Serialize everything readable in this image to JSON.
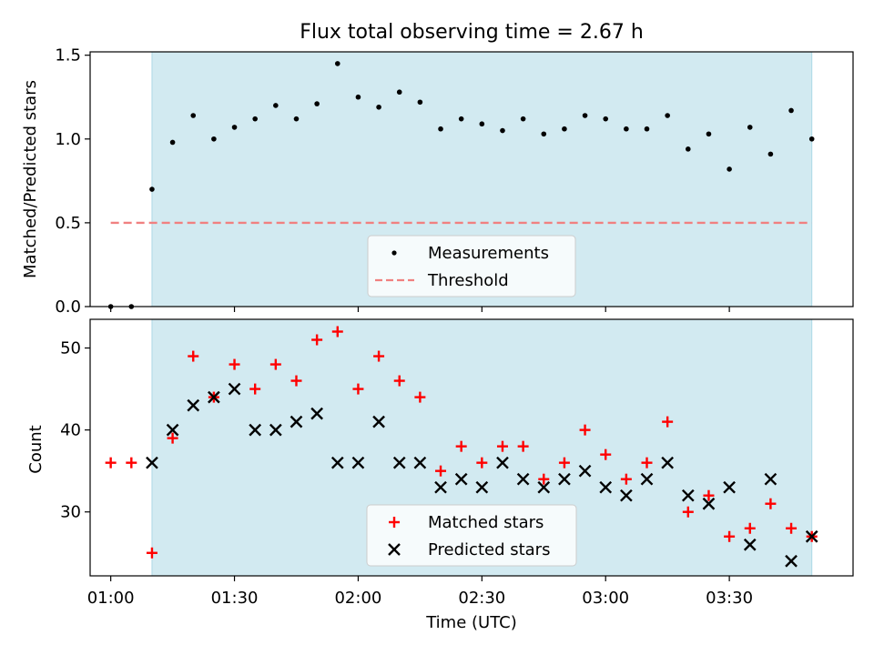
{
  "colors": {
    "background": "#ffffff",
    "shading": "#add8e6",
    "measurement": "#000000",
    "threshold": "#f08080",
    "matched": "#ff0000",
    "predicted": "#000000"
  },
  "chart_data": [
    {
      "type": "scatter",
      "title": "Flux total observing time = 2.67 h",
      "xlabel": "",
      "ylabel": "Matched/Predicted stars",
      "ylim": [
        0,
        1.52
      ],
      "yticks": [
        "0.0",
        "0.5",
        "1.0",
        "1.5"
      ],
      "shaded_region": {
        "x_start": "01:10",
        "x_end": "03:50"
      },
      "legend_position": "lower center",
      "series": [
        {
          "name": "Measurements",
          "marker": "dot",
          "x": [
            "01:00",
            "01:05",
            "01:10",
            "01:15",
            "01:20",
            "01:25",
            "01:30",
            "01:35",
            "01:40",
            "01:45",
            "01:50",
            "01:55",
            "02:00",
            "02:05",
            "02:10",
            "02:15",
            "02:20",
            "02:25",
            "02:30",
            "02:35",
            "02:40",
            "02:45",
            "02:50",
            "02:55",
            "03:00",
            "03:05",
            "03:10",
            "03:15",
            "03:20",
            "03:25",
            "03:30",
            "03:35",
            "03:40",
            "03:45",
            "03:50"
          ],
          "y": [
            0.0,
            0.0,
            0.7,
            0.98,
            1.14,
            1.0,
            1.07,
            1.12,
            1.2,
            1.12,
            1.21,
            1.45,
            1.25,
            1.19,
            1.28,
            1.22,
            1.06,
            1.12,
            1.09,
            1.05,
            1.12,
            1.03,
            1.06,
            1.14,
            1.12,
            1.06,
            1.06,
            1.14,
            0.94,
            1.03,
            0.82,
            1.07,
            0.91,
            1.17,
            1.0
          ]
        },
        {
          "name": "Threshold",
          "marker": "dashed-line",
          "x": [
            "01:00",
            "03:50"
          ],
          "y": [
            0.5,
            0.5
          ]
        }
      ]
    },
    {
      "type": "scatter",
      "title": "",
      "xlabel": "Time (UTC)",
      "ylabel": "Count",
      "ylim": [
        22.2,
        53.5
      ],
      "yticks": [
        "30",
        "40",
        "50"
      ],
      "xticks": [
        "01:00",
        "01:30",
        "02:00",
        "02:30",
        "03:00",
        "03:30"
      ],
      "shaded_region": {
        "x_start": "01:10",
        "x_end": "03:50"
      },
      "legend_position": "lower center",
      "series": [
        {
          "name": "Matched stars",
          "marker": "plus",
          "x": [
            "01:00",
            "01:05",
            "01:10",
            "01:15",
            "01:20",
            "01:25",
            "01:30",
            "01:35",
            "01:40",
            "01:45",
            "01:50",
            "01:55",
            "02:00",
            "02:05",
            "02:10",
            "02:15",
            "02:20",
            "02:25",
            "02:30",
            "02:35",
            "02:40",
            "02:45",
            "02:50",
            "02:55",
            "03:00",
            "03:05",
            "03:10",
            "03:15",
            "03:20",
            "03:25",
            "03:30",
            "03:35",
            "03:40",
            "03:45",
            "03:50"
          ],
          "y": [
            36,
            36,
            25,
            39,
            49,
            44,
            48,
            45,
            48,
            46,
            51,
            52,
            45,
            49,
            46,
            44,
            35,
            38,
            36,
            38,
            38,
            34,
            36,
            40,
            37,
            34,
            36,
            41,
            30,
            32,
            27,
            28,
            31,
            28,
            27
          ]
        },
        {
          "name": "Predicted stars",
          "marker": "x",
          "x": [
            "01:10",
            "01:15",
            "01:20",
            "01:25",
            "01:30",
            "01:35",
            "01:40",
            "01:45",
            "01:50",
            "01:55",
            "02:00",
            "02:05",
            "02:10",
            "02:15",
            "02:20",
            "02:25",
            "02:30",
            "02:35",
            "02:40",
            "02:45",
            "02:50",
            "02:55",
            "03:00",
            "03:05",
            "03:10",
            "03:15",
            "03:20",
            "03:25",
            "03:30",
            "03:35",
            "03:40",
            "03:45",
            "03:50"
          ],
          "y": [
            36,
            40,
            43,
            44,
            45,
            40,
            40,
            41,
            42,
            36,
            36,
            41,
            36,
            36,
            33,
            34,
            33,
            36,
            34,
            33,
            34,
            35,
            33,
            32,
            34,
            36,
            32,
            31,
            33,
            26,
            34,
            24,
            27
          ]
        }
      ]
    }
  ]
}
